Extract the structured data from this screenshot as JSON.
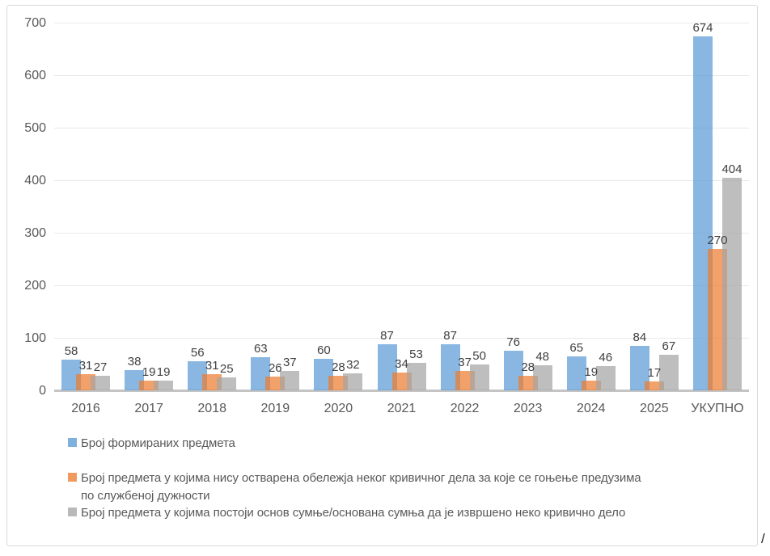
{
  "chart_data": {
    "type": "bar",
    "title": "",
    "xlabel": "",
    "ylabel": "",
    "categories": [
      "2016",
      "2017",
      "2018",
      "2019",
      "2020",
      "2021",
      "2022",
      "2023",
      "2024",
      "2025",
      "УКУПНО"
    ],
    "series": [
      {
        "name": "Број формираних предмета",
        "color": "#5B9BD5",
        "values": [
          58,
          38,
          56,
          63,
          60,
          87,
          87,
          76,
          65,
          84,
          674
        ]
      },
      {
        "name": "Број предмета у којима нису остварена обележја неког кривичног дела за које се гоњење предузима по службеној дужности",
        "color": "#ED7D31",
        "values": [
          31,
          19,
          31,
          26,
          28,
          34,
          37,
          28,
          19,
          17,
          270
        ]
      },
      {
        "name": "Број предмета у којима постоји основ сумње/основана сумња да је извршено неко кривично дело",
        "color": "#A5A5A5",
        "values": [
          27,
          19,
          25,
          37,
          32,
          53,
          50,
          48,
          46,
          67,
          404
        ]
      }
    ],
    "ylim": [
      0,
      700
    ],
    "yticks": [
      0,
      100,
      200,
      300,
      400,
      500,
      600,
      700
    ],
    "grid": true,
    "data_labels": true,
    "legend_position": "bottom"
  },
  "legend": {
    "items": [
      {
        "label": "Број формираних предмета"
      },
      {
        "label": "Број предмета у којима нису остварена обележја неког кривичног дела за које се гоњење предузима\nпо службеној дужности"
      },
      {
        "label": "Број предмета у којима постоји основ сумње/основана сумња да је извршено неко кривично дело"
      }
    ]
  },
  "stray_character": "/"
}
